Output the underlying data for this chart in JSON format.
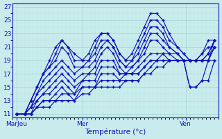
{
  "xlabel": "Température (°c)",
  "bg_color": "#c8ecec",
  "grid_major_color": "#a8d8d8",
  "grid_minor_color": "#b8e4e4",
  "line_color": "#1111bb",
  "marker": "+",
  "markersize": 3.5,
  "linewidth": 0.85,
  "ylim": [
    10.5,
    27.5
  ],
  "xlim": [
    0,
    100
  ],
  "ytick_major": [
    11,
    13,
    15,
    17,
    19,
    21,
    23,
    25,
    27
  ],
  "xtick_positions": [
    2,
    34,
    84
  ],
  "xtick_labels": [
    "MarJeu",
    "Mer",
    "Ven"
  ],
  "x_positions": [
    2,
    6,
    9,
    12,
    15,
    18,
    21,
    24,
    27,
    30,
    34,
    37,
    40,
    43,
    46,
    49,
    52,
    55,
    58,
    61,
    64,
    67,
    70,
    73,
    76,
    80,
    83,
    86,
    89,
    92,
    95,
    98
  ],
  "series": [
    [
      11,
      11,
      13,
      15,
      17,
      19,
      21,
      22,
      21,
      20,
      19,
      20,
      22,
      23,
      23,
      22,
      20,
      19,
      20,
      22,
      24,
      26,
      26,
      25,
      23,
      21,
      20,
      19,
      19,
      20,
      22,
      22
    ],
    [
      11,
      11,
      13,
      15,
      17,
      18,
      20,
      22,
      21,
      19,
      19,
      19,
      21,
      23,
      23,
      22,
      20,
      19,
      19,
      21,
      23,
      25,
      25,
      24,
      22,
      21,
      20,
      19,
      19,
      20,
      21,
      21
    ],
    [
      11,
      11,
      13,
      15,
      17,
      18,
      19,
      21,
      20,
      18,
      18,
      19,
      20,
      22,
      22,
      21,
      19,
      18,
      19,
      20,
      22,
      24,
      24,
      23,
      21,
      20,
      19,
      19,
      19,
      19,
      20,
      22
    ],
    [
      11,
      11,
      12,
      14,
      16,
      17,
      18,
      19,
      18,
      17,
      18,
      18,
      19,
      21,
      22,
      21,
      19,
      18,
      18,
      19,
      21,
      23,
      23,
      22,
      21,
      20,
      19,
      19,
      19,
      19,
      20,
      22
    ],
    [
      11,
      11,
      12,
      14,
      15,
      16,
      17,
      18,
      17,
      16,
      17,
      17,
      18,
      20,
      21,
      20,
      18,
      17,
      18,
      19,
      20,
      22,
      22,
      21,
      20,
      20,
      19,
      19,
      19,
      19,
      19,
      22
    ],
    [
      11,
      11,
      12,
      13,
      14,
      15,
      16,
      17,
      16,
      15,
      16,
      17,
      17,
      19,
      19,
      19,
      17,
      17,
      17,
      18,
      19,
      20,
      20,
      20,
      20,
      19,
      19,
      19,
      19,
      19,
      19,
      21
    ],
    [
      11,
      11,
      11,
      13,
      14,
      14,
      15,
      16,
      15,
      14,
      16,
      16,
      16,
      18,
      18,
      18,
      17,
      17,
      17,
      17,
      18,
      19,
      19,
      20,
      19,
      19,
      19,
      19,
      19,
      19,
      19,
      21
    ],
    [
      11,
      11,
      11,
      12,
      13,
      13,
      14,
      15,
      14,
      14,
      15,
      15,
      15,
      17,
      17,
      17,
      16,
      17,
      17,
      17,
      18,
      19,
      19,
      19,
      19,
      19,
      19,
      19,
      19,
      19,
      19,
      21
    ],
    [
      11,
      11,
      11,
      12,
      13,
      13,
      13,
      14,
      14,
      13,
      15,
      15,
      15,
      16,
      16,
      16,
      16,
      16,
      16,
      16,
      17,
      18,
      19,
      19,
      19,
      19,
      19,
      15,
      15,
      16,
      19,
      19
    ],
    [
      11,
      11,
      11,
      12,
      12,
      12,
      13,
      13,
      13,
      13,
      14,
      14,
      15,
      15,
      15,
      15,
      15,
      16,
      16,
      16,
      17,
      17,
      18,
      18,
      19,
      19,
      19,
      15,
      15,
      16,
      16,
      19
    ]
  ]
}
